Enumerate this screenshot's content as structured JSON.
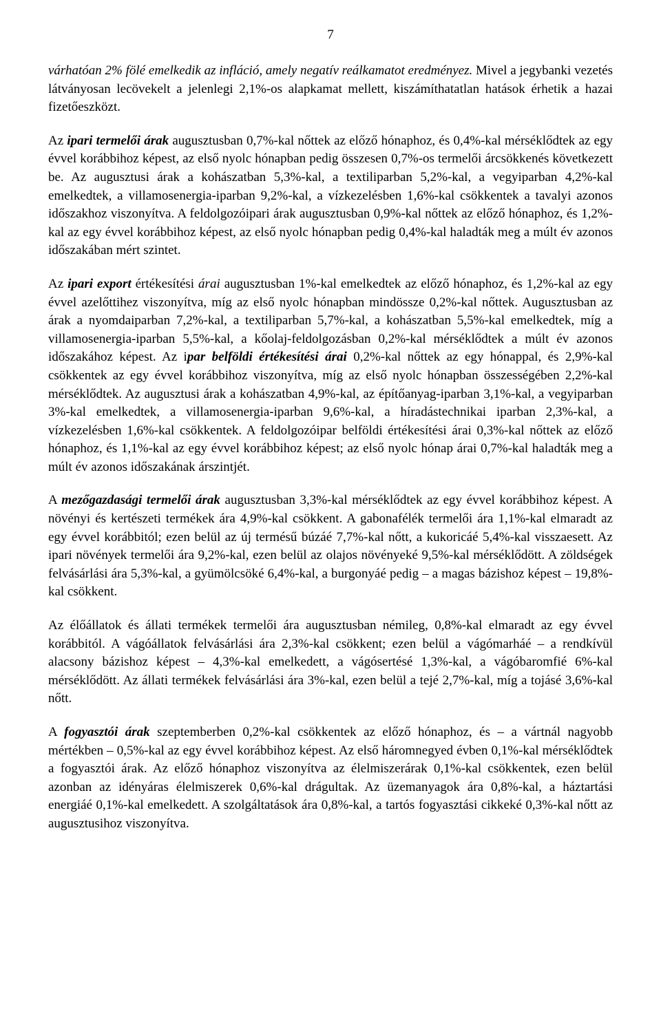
{
  "page_number": "7",
  "paragraphs": {
    "p1a": "várhatóan 2% fölé emelkedik az infláció, amely negatív reálkamatot eredményez.",
    "p1b": " Mivel a jegybanki vezetés látványosan lecövekelt a jelenlegi 2,1%-os alapkamat mellett, kiszámíthatatlan hatások érhetik a hazai fizetőeszközt.",
    "p2a": "Az ",
    "p2b": "ipari termelői árak",
    "p2c": " augusztusban 0,7%-kal nőttek az előző hónaphoz, és 0,4%-kal mérséklődtek az egy évvel korábbihoz képest, az első nyolc hónapban pedig összesen 0,7%-os termelői árcsökkenés következett be. Az augusztusi árak a kohászatban 5,3%-kal, a textiliparban 5,2%-kal, a vegyiparban 4,2%-kal emelkedtek, a villamosenergia-iparban 9,2%-kal, a vízkezelésben 1,6%-kal csökkentek a tavalyi azonos időszakhoz viszonyítva. A feldolgozóipari árak augusztusban 0,9%-kal nőttek az előző hónaphoz, és 1,2%-kal az egy évvel korábbihoz képest, az első nyolc hónapban pedig 0,4%-kal haladták meg a múlt év azonos időszakában mért szintet.",
    "p3a": "Az ",
    "p3b": "ipari export",
    "p3c": " értékesítési ",
    "p3d": "árai",
    "p3e": " augusztusban 1%-kal emelkedtek az előző hónaphoz, és 1,2%-kal az egy évvel azelőttihez viszonyítva, míg az első nyolc hónapban mindössze 0,2%-kal nőttek. Augusztusban az árak a nyomdaiparban 7,2%-kal, a textiliparban 5,7%-kal, a kohászatban 5,5%-kal emelkedtek, míg a villamosenergia-iparban 5,5%-kal, a kőolaj-feldolgozásban 0,2%-kal mérséklődtek a múlt év azonos időszakához képest. Az i",
    "p3f": "par belföldi értékesítési árai",
    "p3g": " 0,2%-kal nőttek az egy hónappal, és 2,9%-kal csökkentek az egy évvel korábbihoz viszonyítva, míg az első nyolc hónapban összességében 2,2%-kal mérséklődtek. Az augusztusi árak a kohászatban 4,9%-kal, az építőanyag-iparban 3,1%-kal, a vegyiparban 3%-kal emelkedtek, a villamosenergia-iparban 9,6%-kal, a híradástechnikai iparban 2,3%-kal, a vízkezelésben 1,6%-kal csökkentek. A feldolgozóipar belföldi értékesítési árai 0,3%-kal nőttek az előző hónaphoz, és 1,1%-kal az egy évvel korábbihoz képest; az első nyolc hónap árai 0,7%-kal haladták meg a múlt év azonos időszakának árszintjét.",
    "p4a": "A ",
    "p4b": "mezőgazdasági termelői árak",
    "p4c": " augusztusban 3,3%-kal mérséklődtek az egy évvel korábbihoz képest. A növényi és kertészeti termékek ára 4,9%-kal csökkent. A gabonafélék termelői ára 1,1%-kal elmaradt az egy évvel korábbitól; ezen belül az új termésű búzáé 7,7%-kal nőtt, a kukoricáé 5,4%-kal visszaesett. Az ipari növények termelői ára 9,2%-kal, ezen belül az olajos növényeké 9,5%-kal mérséklődött. A zöldségek felvásárlási ára 5,3%-kal, a gyümölcsöké 6,4%-kal, a burgonyáé pedig – a magas bázishoz képest – 19,8%-kal csökkent.",
    "p5": "Az élőállatok és állati termékek termelői ára augusztusban némileg, 0,8%-kal elmaradt az egy évvel korábbitól. A vágóállatok felvásárlási ára 2,3%-kal csökkent; ezen belül a vágómarháé – a rendkívül alacsony bázishoz képest – 4,3%-kal emelkedett, a vágósertésé 1,3%-kal, a vágóbaromfié 6%-kal mérséklődött. Az állati termékek felvásárlási ára 3%-kal, ezen belül a tejé 2,7%-kal, míg a tojásé 3,6%-kal nőtt.",
    "p6a": "A ",
    "p6b": "fogyasztói árak",
    "p6c": " szeptemberben 0,2%-kal csökkentek az előző hónaphoz, és – a vártnál nagyobb mértékben – 0,5%-kal az egy évvel korábbihoz képest. Az első háromnegyed évben 0,1%-kal mérséklődtek a fogyasztói árak. Az előző hónaphoz viszonyítva az élelmiszerárak 0,1%-kal csökkentek, ezen belül azonban az idényáras élelmiszerek 0,6%-kal drágultak. Az üzemanyagok ára 0,8%-kal, a háztartási energiáé 0,1%-kal emelkedett. A szolgáltatások ára 0,8%-kal, a tartós fogyasztási cikkeké 0,3%-kal nőtt az augusztusihoz viszonyítva."
  }
}
